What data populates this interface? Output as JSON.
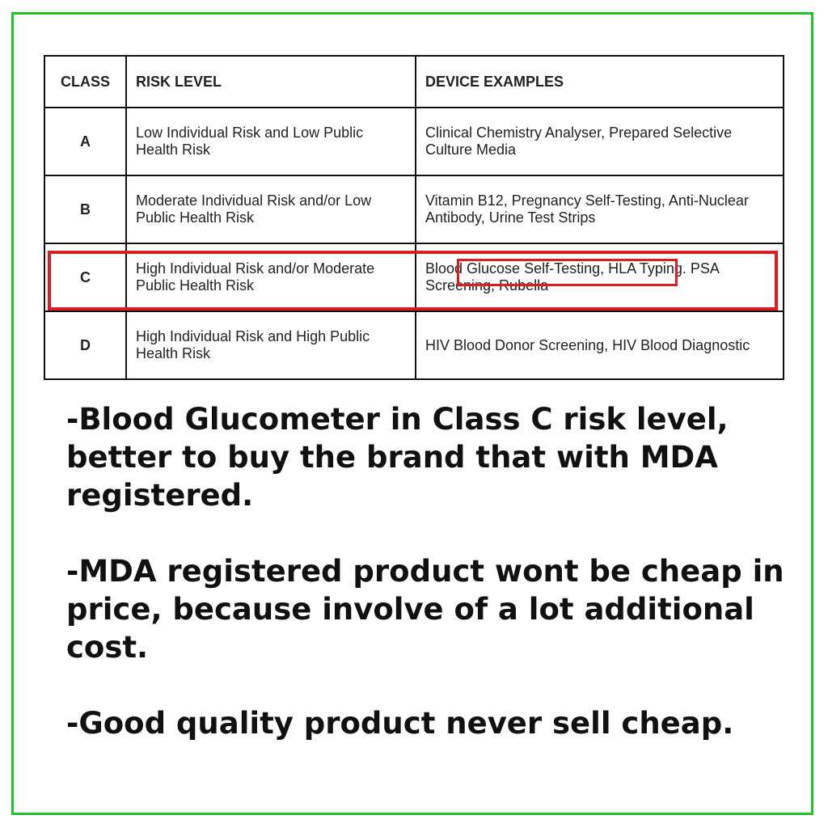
{
  "table": {
    "headers": [
      "CLASS",
      "RISK LEVEL",
      "DEVICE EXAMPLES"
    ],
    "rows": [
      {
        "class": "A",
        "risk": "Low Individual Risk and Low Public Health Risk",
        "devices": "Clinical Chemistry Analyser, Prepared Selective Culture Media"
      },
      {
        "class": "B",
        "risk": "Moderate Individual Risk and/or Low Public Health Risk",
        "devices": "Vitamin B12, Pregnancy Self-Testing, Anti-Nuclear Antibody, Urine Test Strips"
      },
      {
        "class": "C",
        "risk": "High Individual Risk and/or Moderate Public Health Risk",
        "devices_highlight": "Blood Glucose Self-Testing,",
        "devices": " HLA Typing. PSA Screening, Rubella"
      },
      {
        "class": "D",
        "risk": "High Individual Risk and High Public Health Risk",
        "devices": "HIV Blood Donor Screening, HIV Blood Diagnostic"
      }
    ]
  },
  "notes": [
    "-Blood Glucometer in Class C risk level, better to buy the brand that with MDA registered.",
    "-MDA registered product wont be cheap in price, because involve of a lot additional cost.",
    "-Good quality product never sell cheap."
  ],
  "colors": {
    "frame": "#22c32a",
    "highlight": "#d81e22"
  }
}
